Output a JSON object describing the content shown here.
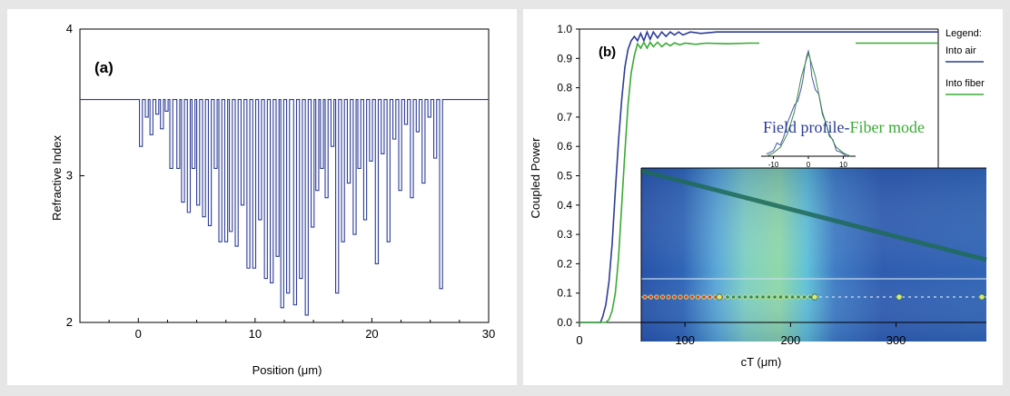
{
  "chart_data": [
    {
      "type": "line",
      "panel_label": "(a)",
      "xlabel": "Position (μm)",
      "ylabel": "Refractive Index",
      "xlim": [
        -5,
        30
      ],
      "ylim": [
        2,
        4
      ],
      "x_ticks": [
        0,
        10,
        20,
        30
      ],
      "y_ticks": [
        2,
        3,
        4
      ],
      "baseline": 3.52,
      "x_start": 0,
      "x_end": 26,
      "dips": [
        {
          "x": 0.1,
          "w": 0.25,
          "y": 3.2
        },
        {
          "x": 0.6,
          "w": 0.25,
          "y": 3.4
        },
        {
          "x": 1.0,
          "w": 0.25,
          "y": 3.28
        },
        {
          "x": 1.5,
          "w": 0.25,
          "y": 3.42
        },
        {
          "x": 1.9,
          "w": 0.25,
          "y": 3.32
        },
        {
          "x": 2.3,
          "w": 0.25,
          "y": 3.44
        },
        {
          "x": 2.7,
          "w": 0.25,
          "y": 3.05
        },
        {
          "x": 3.3,
          "w": 0.25,
          "y": 3.05
        },
        {
          "x": 3.7,
          "w": 0.25,
          "y": 2.82
        },
        {
          "x": 4.2,
          "w": 0.25,
          "y": 2.75
        },
        {
          "x": 4.6,
          "w": 0.25,
          "y": 3.05
        },
        {
          "x": 5.0,
          "w": 0.25,
          "y": 2.8
        },
        {
          "x": 5.5,
          "w": 0.25,
          "y": 2.72
        },
        {
          "x": 6.0,
          "w": 0.25,
          "y": 2.66
        },
        {
          "x": 6.5,
          "w": 0.25,
          "y": 3.05
        },
        {
          "x": 6.9,
          "w": 0.25,
          "y": 2.55
        },
        {
          "x": 7.4,
          "w": 0.25,
          "y": 2.55
        },
        {
          "x": 7.8,
          "w": 0.25,
          "y": 2.62
        },
        {
          "x": 8.3,
          "w": 0.25,
          "y": 2.52
        },
        {
          "x": 8.8,
          "w": 0.25,
          "y": 2.8
        },
        {
          "x": 9.3,
          "w": 0.25,
          "y": 2.37
        },
        {
          "x": 9.8,
          "w": 0.25,
          "y": 2.37
        },
        {
          "x": 10.3,
          "w": 0.25,
          "y": 2.7
        },
        {
          "x": 10.8,
          "w": 0.25,
          "y": 2.3
        },
        {
          "x": 11.3,
          "w": 0.25,
          "y": 2.27
        },
        {
          "x": 11.8,
          "w": 0.25,
          "y": 2.45
        },
        {
          "x": 12.2,
          "w": 0.25,
          "y": 2.1
        },
        {
          "x": 12.7,
          "w": 0.25,
          "y": 2.2
        },
        {
          "x": 13.3,
          "w": 0.25,
          "y": 2.12
        },
        {
          "x": 13.8,
          "w": 0.25,
          "y": 2.3
        },
        {
          "x": 14.3,
          "w": 0.25,
          "y": 2.05
        },
        {
          "x": 14.8,
          "w": 0.25,
          "y": 2.65
        },
        {
          "x": 15.2,
          "w": 0.25,
          "y": 2.9
        },
        {
          "x": 15.6,
          "w": 0.25,
          "y": 3.05
        },
        {
          "x": 16.0,
          "w": 0.25,
          "y": 2.85
        },
        {
          "x": 16.5,
          "w": 0.25,
          "y": 3.2
        },
        {
          "x": 16.9,
          "w": 0.25,
          "y": 2.2
        },
        {
          "x": 17.4,
          "w": 0.25,
          "y": 2.55
        },
        {
          "x": 17.9,
          "w": 0.25,
          "y": 2.95
        },
        {
          "x": 18.4,
          "w": 0.25,
          "y": 2.6
        },
        {
          "x": 18.8,
          "w": 0.25,
          "y": 3.05
        },
        {
          "x": 19.3,
          "w": 0.25,
          "y": 2.7
        },
        {
          "x": 19.8,
          "w": 0.25,
          "y": 3.1
        },
        {
          "x": 20.3,
          "w": 0.25,
          "y": 2.4
        },
        {
          "x": 20.8,
          "w": 0.25,
          "y": 3.15
        },
        {
          "x": 21.3,
          "w": 0.25,
          "y": 2.55
        },
        {
          "x": 21.8,
          "w": 0.25,
          "y": 3.25
        },
        {
          "x": 22.3,
          "w": 0.25,
          "y": 2.9
        },
        {
          "x": 22.8,
          "w": 0.25,
          "y": 3.35
        },
        {
          "x": 23.3,
          "w": 0.25,
          "y": 2.85
        },
        {
          "x": 23.8,
          "w": 0.25,
          "y": 3.3
        },
        {
          "x": 24.3,
          "w": 0.25,
          "y": 2.95
        },
        {
          "x": 24.8,
          "w": 0.25,
          "y": 3.4
        },
        {
          "x": 25.3,
          "w": 0.25,
          "y": 3.12
        },
        {
          "x": 25.8,
          "w": 0.25,
          "y": 2.23
        }
      ],
      "line_color": "#2d3c96",
      "grid": false
    },
    {
      "type": "line",
      "panel_label": "(b)",
      "xlabel": "cT (μm)",
      "ylabel": "Coupled Power",
      "xlim": [
        0,
        340
      ],
      "ylim": [
        0,
        1.0
      ],
      "x_ticks": [
        0,
        100,
        200,
        300
      ],
      "y_ticks": [
        0.0,
        0.1,
        0.2,
        0.3,
        0.4,
        0.5,
        0.6,
        0.7,
        0.8,
        0.9,
        1.0
      ],
      "legend": {
        "title": "Legend:",
        "placement": "right",
        "entries": [
          {
            "label": "Into air",
            "color": "#2d3c96"
          },
          {
            "label": "Into fiber",
            "color": "#3aaa35"
          }
        ]
      },
      "series": [
        {
          "name": "Into air",
          "color": "#2d3c96",
          "x": [
            0,
            20,
            22,
            25,
            28,
            31,
            34,
            37,
            40,
            43,
            46,
            49,
            52,
            55,
            58,
            61,
            64,
            67,
            70,
            74,
            78,
            82,
            86,
            90,
            94,
            98,
            105,
            115,
            130,
            150,
            200,
            250,
            300,
            340
          ],
          "y": [
            0,
            0,
            0.02,
            0.06,
            0.14,
            0.27,
            0.45,
            0.62,
            0.76,
            0.87,
            0.93,
            0.96,
            0.975,
            0.96,
            0.985,
            0.96,
            0.99,
            0.965,
            0.99,
            0.97,
            0.99,
            0.975,
            0.99,
            0.98,
            0.99,
            0.98,
            0.99,
            0.985,
            0.99,
            0.99,
            0.99,
            0.99,
            0.99,
            0.99
          ]
        },
        {
          "name": "Into fiber",
          "color": "#3aaa35",
          "x": [
            0,
            25,
            28,
            31,
            34,
            37,
            40,
            43,
            46,
            49,
            52,
            55,
            58,
            61,
            64,
            67,
            70,
            74,
            78,
            82,
            86,
            90,
            95,
            100,
            110,
            120,
            140,
            160,
            200,
            250,
            300,
            340
          ],
          "y": [
            0,
            0,
            0.01,
            0.04,
            0.1,
            0.22,
            0.4,
            0.58,
            0.74,
            0.85,
            0.91,
            0.95,
            0.935,
            0.955,
            0.935,
            0.955,
            0.94,
            0.955,
            0.94,
            0.952,
            0.943,
            0.953,
            0.946,
            0.952,
            0.948,
            0.952,
            0.95,
            0.952,
            0.952,
            0.952,
            0.952,
            0.952
          ]
        }
      ],
      "grid": false,
      "inset": {
        "title_part1": "Field profile-",
        "title_part2": "Fiber mode",
        "title_color1": "#2d3c96",
        "title_color2": "#3aaa35",
        "x_ticks": [
          -10,
          0,
          10
        ],
        "xlim": [
          -13,
          13
        ],
        "ylim": [
          0,
          1
        ],
        "field_x": [
          -12,
          -10,
          -9,
          -8,
          -7,
          -6,
          -5,
          -4,
          -3,
          -2,
          -1.5,
          -1,
          -0.5,
          0,
          0.5,
          1,
          2,
          3,
          4,
          5,
          6,
          7,
          8,
          9,
          10,
          11
        ],
        "field_y": [
          0.02,
          0.05,
          0.12,
          0.1,
          0.18,
          0.3,
          0.38,
          0.46,
          0.5,
          0.62,
          0.7,
          0.82,
          0.9,
          0.95,
          0.88,
          0.72,
          0.6,
          0.56,
          0.38,
          0.3,
          0.18,
          0.15,
          0.05,
          0.04,
          0.02,
          0.0
        ],
        "mode_x": [
          -12,
          -10,
          -8,
          -6,
          -4,
          -2,
          0,
          2,
          4,
          6,
          8,
          10,
          12
        ],
        "mode_y": [
          0.0,
          0.03,
          0.08,
          0.2,
          0.4,
          0.72,
          0.93,
          0.72,
          0.4,
          0.2,
          0.08,
          0.03,
          0.0
        ]
      }
    }
  ]
}
